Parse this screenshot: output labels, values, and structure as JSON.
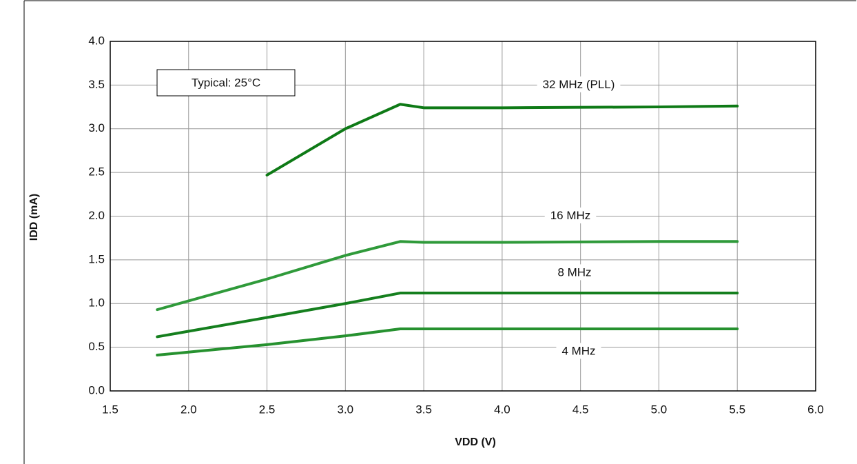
{
  "chart_data": {
    "type": "line",
    "x_label": "VDD (V)",
    "y_label": "IDD (mA)",
    "annotation": "Typical: 25°C",
    "x": [
      1.8,
      2.5,
      3.0,
      3.35,
      3.5,
      4.0,
      5.0,
      5.5
    ],
    "series": [
      {
        "name": "32 MHz (PLL)",
        "color": "#0e7a16",
        "values": [
          null,
          2.47,
          3.0,
          3.28,
          3.24,
          3.24,
          3.25,
          3.26
        ]
      },
      {
        "name": "16 MHz",
        "color": "#2f9a3a",
        "values": [
          0.93,
          1.28,
          1.55,
          1.71,
          1.7,
          1.7,
          1.71,
          1.71
        ]
      },
      {
        "name": "8 MHz",
        "color": "#157f1e",
        "values": [
          0.62,
          0.84,
          1.0,
          1.12,
          1.12,
          1.12,
          1.12,
          1.12
        ]
      },
      {
        "name": "4 MHz",
        "color": "#26912f",
        "values": [
          0.41,
          0.53,
          0.63,
          0.71,
          0.71,
          0.71,
          0.71,
          0.71
        ]
      }
    ],
    "xlim": [
      1.5,
      6.0
    ],
    "ylim": [
      0.0,
      4.0
    ],
    "xticks": [
      1.5,
      {
        "value": 2,
        "label": "2.0"
      },
      2.5,
      {
        "value": 3,
        "label": "3.0"
      },
      3.5,
      {
        "value": 4,
        "label": "4.0"
      },
      4.5,
      {
        "value": 5,
        "label": "5.0"
      },
      5.5,
      {
        "value": 6,
        "label": "6.0"
      }
    ],
    "yticks": [
      {
        "value": 0,
        "label": "0.0"
      },
      0.5,
      {
        "value": 1,
        "label": "1.0"
      },
      1.5,
      {
        "value": 2,
        "label": "2.0"
      },
      2.5,
      {
        "value": 3,
        "label": "3.0"
      },
      3.5,
      {
        "value": 4,
        "label": "4.0"
      }
    ],
    "grid": true
  }
}
